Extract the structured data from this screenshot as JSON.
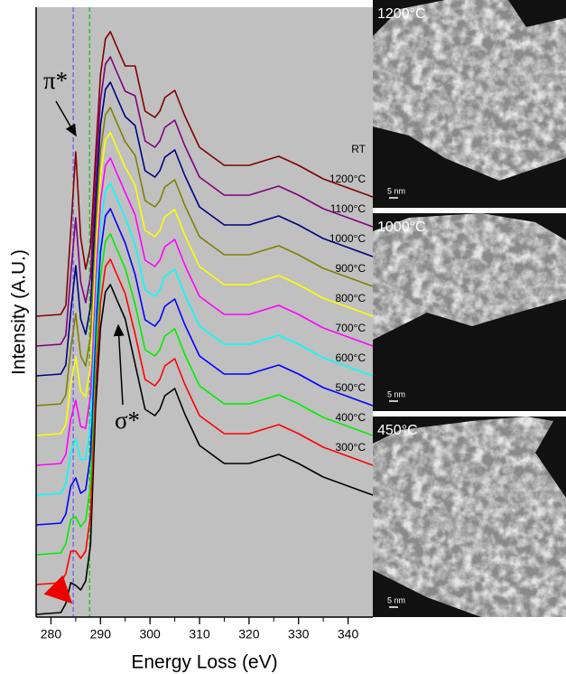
{
  "chart_data": {
    "type": "line",
    "xlabel": "Energy Loss (eV)",
    "ylabel": "Intensity (A.U.)",
    "xlim": [
      277,
      345
    ],
    "ylim": [
      0,
      675
    ],
    "xticks": [
      280,
      290,
      300,
      310,
      320,
      330,
      340
    ],
    "xminorticks": [
      285,
      295,
      305,
      315,
      325,
      335
    ],
    "background": "#c0c0c0",
    "x": [
      277,
      282,
      283,
      284,
      285,
      286,
      287,
      288,
      289,
      290,
      291,
      292,
      293,
      295,
      297,
      299,
      301,
      302,
      303,
      305,
      307,
      310,
      315,
      320,
      326,
      330,
      335,
      340,
      345
    ],
    "series": [
      {
        "name": "300°C",
        "color": "#000000",
        "values": [
          3,
          5,
          15,
          38,
          35,
          30,
          40,
          80,
          230,
          320,
          360,
          368,
          355,
          330,
          280,
          230,
          223,
          230,
          245,
          253,
          225,
          190,
          170,
          170,
          180,
          170,
          155,
          145,
          135
        ]
      },
      {
        "name": "400°C",
        "color": "#ff0000",
        "values": [
          36,
          38,
          48,
          73,
          73,
          65,
          73,
          113,
          258,
          348,
          388,
          396,
          383,
          358,
          313,
          263,
          256,
          263,
          278,
          286,
          258,
          223,
          203,
          203,
          213,
          203,
          188,
          178,
          168
        ]
      },
      {
        "name": "500°C",
        "color": "#00ee00",
        "values": [
          69,
          71,
          81,
          108,
          111,
          100,
          107,
          146,
          286,
          376,
          416,
          424,
          411,
          386,
          346,
          296,
          289,
          296,
          311,
          319,
          291,
          256,
          236,
          236,
          246,
          236,
          221,
          211,
          201
        ]
      },
      {
        "name": "600°C",
        "color": "#0000ff",
        "values": [
          102,
          104,
          114,
          145,
          154,
          137,
          141,
          179,
          314,
          404,
          444,
          452,
          439,
          414,
          379,
          329,
          322,
          329,
          344,
          352,
          324,
          289,
          269,
          269,
          279,
          269,
          254,
          244,
          234
        ]
      },
      {
        "name": "700°C",
        "color": "#00ffff",
        "values": [
          135,
          137,
          147,
          182,
          197,
          174,
          175,
          212,
          342,
          432,
          472,
          480,
          467,
          442,
          412,
          362,
          355,
          362,
          377,
          385,
          357,
          322,
          302,
          302,
          312,
          302,
          287,
          277,
          267
        ]
      },
      {
        "name": "800°C",
        "color": "#ff00ff",
        "values": [
          168,
          170,
          180,
          219,
          240,
          211,
          209,
          245,
          370,
          460,
          500,
          508,
          495,
          470,
          445,
          395,
          388,
          395,
          410,
          418,
          390,
          355,
          335,
          335,
          345,
          335,
          320,
          310,
          300
        ]
      },
      {
        "name": "900°C",
        "color": "#ffff00",
        "values": [
          201,
          203,
          213,
          258,
          288,
          250,
          244,
          278,
          398,
          488,
          528,
          536,
          523,
          498,
          478,
          428,
          421,
          428,
          443,
          451,
          423,
          388,
          368,
          368,
          378,
          368,
          353,
          343,
          333
        ]
      },
      {
        "name": "1000°C",
        "color": "#808000",
        "values": [
          234,
          236,
          246,
          297,
          336,
          289,
          278,
          311,
          426,
          516,
          556,
          564,
          551,
          526,
          511,
          461,
          454,
          461,
          476,
          484,
          456,
          421,
          401,
          401,
          411,
          401,
          386,
          376,
          366
        ]
      },
      {
        "name": "1100°C",
        "color": "#000080",
        "values": [
          267,
          269,
          279,
          338,
          389,
          330,
          313,
          344,
          454,
          544,
          584,
          592,
          579,
          554,
          544,
          494,
          487,
          494,
          509,
          517,
          489,
          454,
          434,
          434,
          444,
          434,
          419,
          409,
          399
        ]
      },
      {
        "name": "1200°C",
        "color": "#800080",
        "values": [
          300,
          302,
          312,
          379,
          442,
          371,
          348,
          377,
          482,
          572,
          612,
          620,
          607,
          582,
          577,
          527,
          520,
          527,
          542,
          550,
          522,
          487,
          467,
          467,
          477,
          467,
          452,
          442,
          432
        ]
      },
      {
        "name": "RT",
        "color": "#800000",
        "values": [
          333,
          335,
          345,
          428,
          515,
          420,
          385,
          410,
          510,
          600,
          640,
          648,
          635,
          610,
          610,
          560,
          553,
          560,
          575,
          583,
          555,
          520,
          500,
          500,
          510,
          500,
          485,
          475,
          465
        ]
      }
    ],
    "reference_lines": [
      {
        "x": 284.5,
        "color": "#6a5cff"
      },
      {
        "x": 287.8,
        "color": "#22bb22"
      }
    ],
    "annotations": [
      {
        "text": "π*"
      },
      {
        "text": "σ*"
      }
    ]
  },
  "images": [
    {
      "label": "1200°C",
      "scale_bar": "5 nm"
    },
    {
      "label": "1000°C",
      "scale_bar": "5 nm"
    },
    {
      "label": "450°C",
      "scale_bar": "5 nm"
    }
  ]
}
